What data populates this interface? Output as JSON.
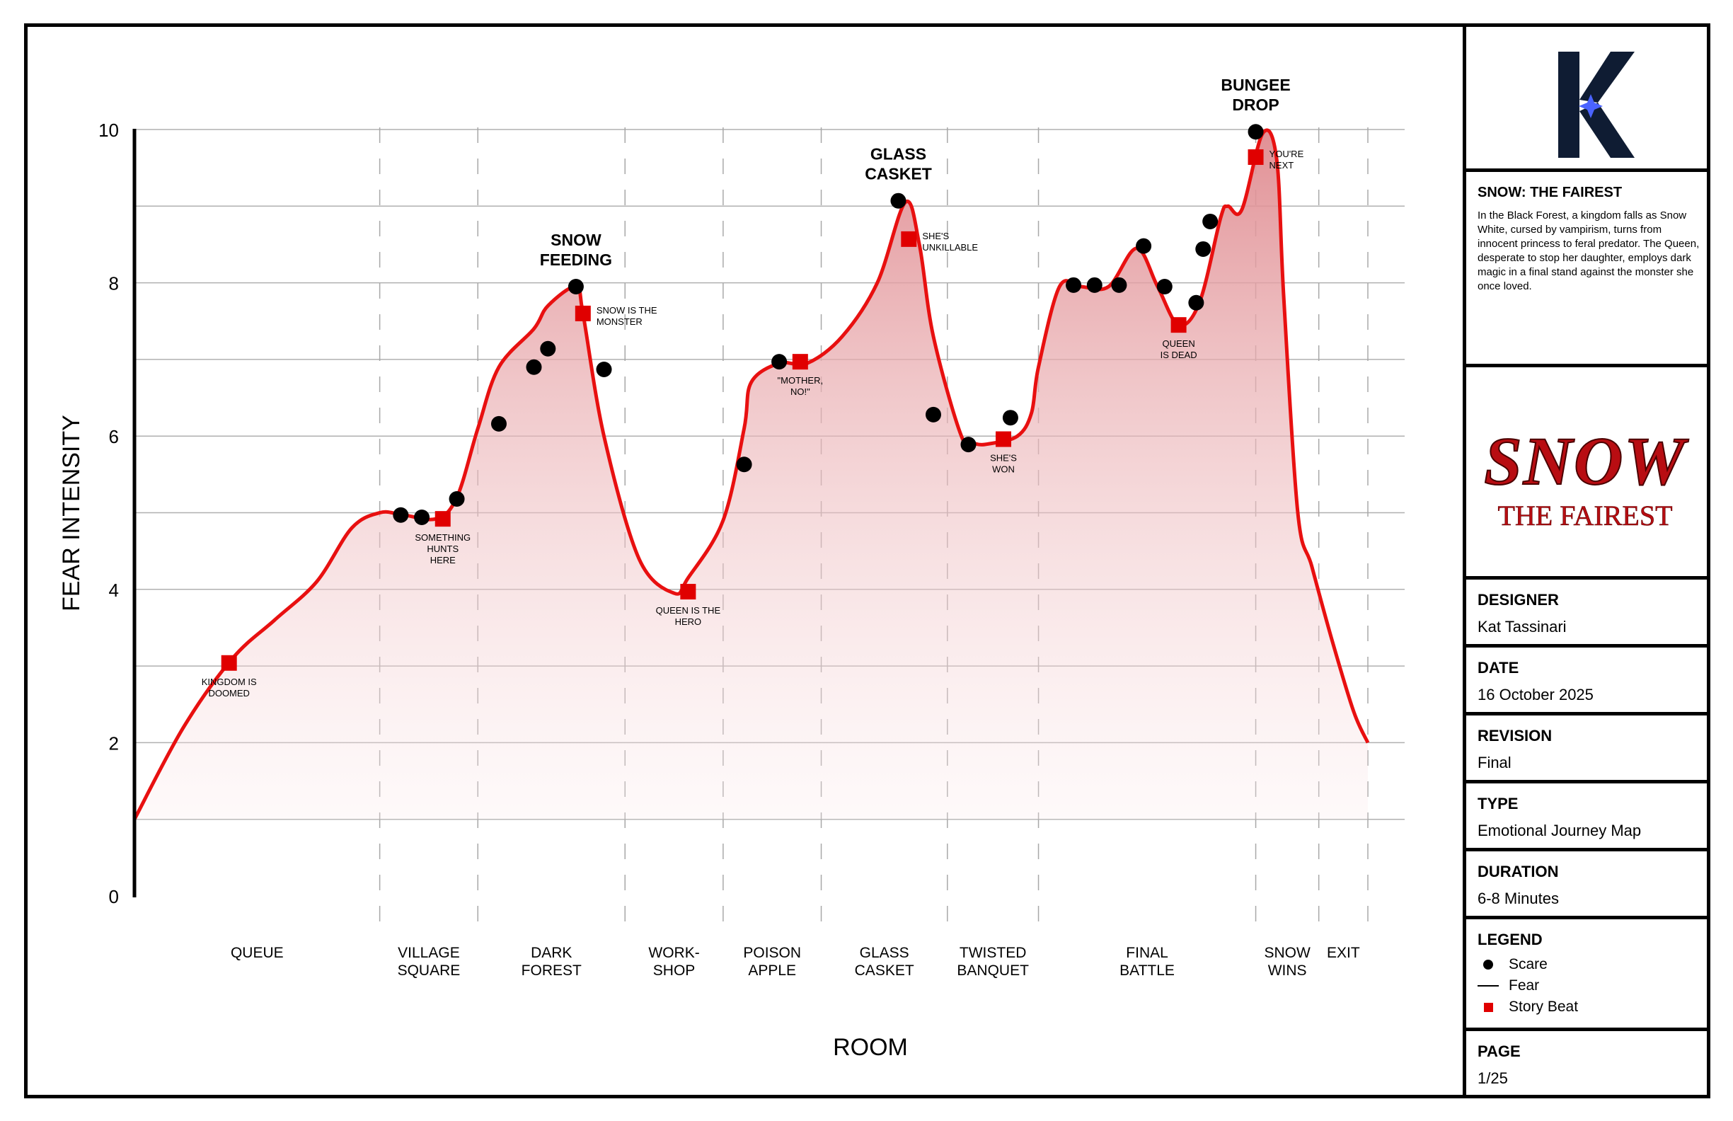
{
  "chart_data": {
    "type": "line",
    "ylabel": "FEAR INTENSITY",
    "xlabel": "ROOM",
    "ylim": [
      0,
      10
    ],
    "yticks": [
      0,
      2,
      4,
      6,
      8,
      10
    ],
    "grid": true,
    "rooms": [
      {
        "label": [
          "QUEUE"
        ],
        "xr": [
          0,
          3.5
        ]
      },
      {
        "label": [
          "VILLAGE",
          "SQUARE"
        ],
        "xr": [
          3.5,
          4.9
        ]
      },
      {
        "label": [
          "DARK",
          "FOREST"
        ],
        "xr": [
          4.9,
          7.0
        ]
      },
      {
        "label": [
          "WORK-",
          "SHOP"
        ],
        "xr": [
          7.0,
          8.4
        ]
      },
      {
        "label": [
          "POISON",
          "APPLE"
        ],
        "xr": [
          8.4,
          9.8
        ]
      },
      {
        "label": [
          "GLASS",
          "CASKET"
        ],
        "xr": [
          9.8,
          11.6
        ]
      },
      {
        "label": [
          "TWISTED",
          "BANQUET"
        ],
        "xr": [
          11.6,
          12.9
        ]
      },
      {
        "label": [
          "FINAL",
          "BATTLE"
        ],
        "xr": [
          12.9,
          16.0
        ]
      },
      {
        "label": [
          "SNOW",
          "WINS"
        ],
        "xr": [
          16.0,
          16.9
        ]
      },
      {
        "label": [
          "EXIT"
        ],
        "xr": [
          16.9,
          17.6
        ]
      }
    ],
    "fear_curve": {
      "name": "Fear",
      "x": [
        0,
        0.7,
        1.4,
        2.0,
        2.6,
        3.1,
        3.5,
        3.8,
        4.3,
        4.6,
        4.9,
        5.2,
        5.7,
        5.9,
        6.3,
        6.4,
        6.7,
        7.2,
        7.7,
        7.9,
        8.4,
        8.7,
        8.8,
        9.2,
        9.6,
        10.1,
        10.6,
        11.0,
        11.2,
        11.4,
        11.8,
        12.0,
        12.2,
        12.6,
        12.8,
        12.9,
        13.2,
        13.5,
        13.9,
        14.3,
        14.6,
        14.9,
        15.2,
        15.5,
        15.6,
        15.8,
        16.1,
        16.3,
        16.4,
        16.6,
        16.8,
        17.1,
        17.4,
        17.6
      ],
      "y": [
        1.0,
        2.2,
        3.1,
        3.6,
        4.1,
        4.8,
        5.0,
        4.98,
        4.92,
        5.2,
        6.1,
        6.9,
        7.4,
        7.7,
        7.95,
        7.6,
        6.0,
        4.4,
        3.95,
        4.15,
        4.9,
        6.1,
        6.7,
        6.95,
        6.95,
        7.3,
        8.0,
        9.05,
        8.5,
        7.3,
        6.0,
        5.9,
        5.9,
        6.0,
        6.3,
        6.9,
        7.95,
        7.95,
        7.95,
        8.45,
        7.95,
        7.45,
        7.75,
        8.85,
        9.0,
        8.95,
        9.95,
        9.6,
        7.8,
        5.0,
        4.3,
        3.3,
        2.4,
        2.0
      ]
    },
    "scares": {
      "name": "Scare",
      "x": [
        3.8,
        4.1,
        4.6,
        5.2,
        5.7,
        5.9,
        6.3,
        6.7,
        8.7,
        9.2,
        10.9,
        11.4,
        11.9,
        12.5,
        13.4,
        13.7,
        14.05,
        14.4,
        14.7,
        15.15,
        15.25,
        15.35,
        16.0
      ],
      "y": [
        4.97,
        4.94,
        5.18,
        6.16,
        6.9,
        7.14,
        7.95,
        6.87,
        5.63,
        6.97,
        9.07,
        6.28,
        5.89,
        6.24,
        7.97,
        7.97,
        7.97,
        8.48,
        7.95,
        7.74,
        8.44,
        8.8,
        9.97
      ]
    },
    "story_beats": {
      "name": "Story Beat",
      "points": [
        {
          "x": 1.35,
          "y": 3.04,
          "label": [
            "KINGDOM IS",
            "DOOMED"
          ],
          "pos": "below"
        },
        {
          "x": 4.4,
          "y": 4.92,
          "label": [
            "SOMETHING",
            "HUNTS",
            "HERE"
          ],
          "pos": "below"
        },
        {
          "x": 6.4,
          "y": 7.6,
          "label": [
            "SNOW IS THE",
            "MONSTER"
          ],
          "pos": "right"
        },
        {
          "x": 7.9,
          "y": 3.97,
          "label": [
            "QUEEN IS THE",
            "HERO"
          ],
          "pos": "below"
        },
        {
          "x": 9.5,
          "y": 6.97,
          "label": [
            "\"MOTHER,",
            "NO!\""
          ],
          "pos": "below"
        },
        {
          "x": 11.05,
          "y": 8.57,
          "label": [
            "SHE'S",
            "UNKILLABLE"
          ],
          "pos": "right"
        },
        {
          "x": 12.4,
          "y": 5.96,
          "label": [
            "SHE'S",
            "WON"
          ],
          "pos": "below"
        },
        {
          "x": 14.9,
          "y": 7.45,
          "label": [
            "QUEEN",
            "IS DEAD"
          ],
          "pos": "below"
        },
        {
          "x": 16.0,
          "y": 9.64,
          "label": [
            "YOU'RE",
            "NEXT"
          ],
          "pos": "right"
        }
      ]
    },
    "peaks": [
      {
        "x": 6.3,
        "y": 7.95,
        "label": [
          "SNOW",
          "FEEDING"
        ]
      },
      {
        "x": 10.9,
        "y": 9.07,
        "label": [
          "GLASS",
          "CASKET"
        ]
      },
      {
        "x": 16.0,
        "y": 9.97,
        "label": [
          "BUNGEE",
          "DROP"
        ]
      }
    ]
  },
  "panel": {
    "logo_letter": "K",
    "title": "SNOW: THE FAIREST",
    "description": "In the Black Forest, a kingdom falls as Snow White, cursed by vampirism, turns from innocent princess to feral predator. The Queen, desperate to stop her daughter, employs dark magic in a final stand against the monster she once loved.",
    "poster_title_main": "SNOW",
    "poster_title_sub": "THE FAIREST",
    "designer_label": "DESIGNER",
    "designer_value": "Kat Tassinari",
    "date_label": "DATE",
    "date_value": "16 October 2025",
    "revision_label": "REVISION",
    "revision_value": "Final",
    "type_label": "TYPE",
    "type_value": "Emotional Journey Map",
    "duration_label": "DURATION",
    "duration_value": "6-8 Minutes",
    "legend_label": "LEGEND",
    "legend_items": [
      "Scare",
      "Fear",
      "Story Beat"
    ],
    "page_label": "PAGE",
    "page_value": "1/25"
  },
  "colors": {
    "curve": "#e81010",
    "fill_top": "#df8a8f",
    "beat": "#e00000",
    "scare": "#000000",
    "grid": "#b0b0b0"
  }
}
